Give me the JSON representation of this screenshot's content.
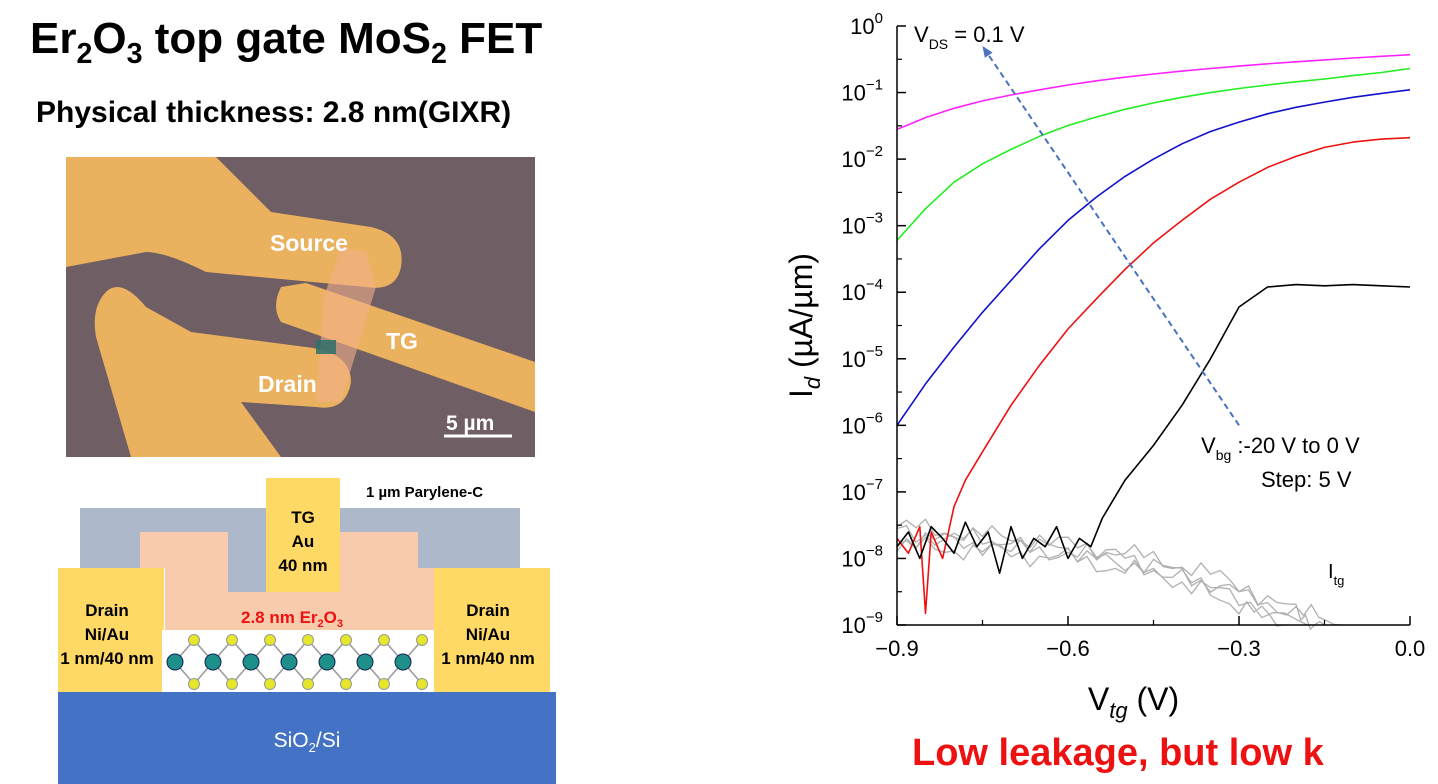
{
  "slide": {
    "title_parts": [
      "Er",
      "2",
      "O",
      "3",
      " top gate MoS",
      "2",
      " FET"
    ],
    "subtitle": "Physical thickness: 2.8 nm(GIXR)",
    "conclusion": "Low leakage, but low k"
  },
  "micrograph": {
    "labels": {
      "source": "Source",
      "tg": "TG",
      "drain": "Drain",
      "scale": "5 µm"
    },
    "colors": {
      "background": "#6f5e64",
      "metal": "#eab25e",
      "flake": "#f1b08a"
    }
  },
  "cross_section": {
    "parylene": "1 µm Parylene-C",
    "tg": [
      "TG",
      "Au",
      "40 nm"
    ],
    "oxide_parts": [
      "2.8 nm Er",
      "2",
      "O",
      "3"
    ],
    "drain_left": [
      "Drain",
      "Ni/Au",
      "1 nm/40 nm"
    ],
    "drain_right": [
      "Drain",
      "Ni/Au",
      "1 nm/40 nm"
    ],
    "substrate_parts": [
      "SiO",
      "2",
      "/Si"
    ],
    "colors": {
      "parylene": "#adb9ca",
      "oxide": "#f8cbad",
      "contact": "#ffd966",
      "substrate": "#4472c4",
      "atom_mo": "#1f8f8a",
      "atom_s": "#e6e62a"
    }
  },
  "chart_data": {
    "type": "line",
    "xlabel": "Vtg (V)",
    "ylabel": "Id (µA/µm)",
    "xlim": [
      -0.9,
      0.0
    ],
    "ylim": [
      1e-09,
      1
    ],
    "y_scale": "log",
    "x_ticks": [
      "−0.9",
      "−0.6",
      "−0.3",
      "0.0"
    ],
    "y_tick_exponents": [
      "0",
      "−1",
      "−2",
      "−3",
      "−4",
      "−5",
      "−6",
      "−7",
      "−8",
      "−9"
    ],
    "annotations": {
      "vds": "V_DS = 0.1 V",
      "vbg": "V_bg :-20 V to 0 V",
      "step": "Step: 5 V",
      "itg": "I_tg",
      "arrow_from": [
        -0.3,
        1e-06
      ],
      "arrow_to": [
        -0.75,
        0.5
      ]
    },
    "series": [
      {
        "color": "#ff22ff",
        "x": [
          -0.9,
          -0.85,
          -0.8,
          -0.75,
          -0.7,
          -0.65,
          -0.6,
          -0.55,
          -0.5,
          -0.45,
          -0.4,
          -0.35,
          -0.3,
          -0.25,
          -0.2,
          -0.15,
          -0.1,
          -0.05,
          0.0
        ],
        "y": [
          0.028,
          0.042,
          0.058,
          0.075,
          0.092,
          0.11,
          0.13,
          0.15,
          0.17,
          0.19,
          0.21,
          0.23,
          0.25,
          0.27,
          0.29,
          0.31,
          0.33,
          0.35,
          0.37
        ]
      },
      {
        "color": "#22ee22",
        "x": [
          -0.9,
          -0.85,
          -0.8,
          -0.75,
          -0.7,
          -0.65,
          -0.6,
          -0.55,
          -0.5,
          -0.45,
          -0.4,
          -0.35,
          -0.3,
          -0.25,
          -0.2,
          -0.15,
          -0.1,
          -0.05,
          0.0
        ],
        "y": [
          0.0006,
          0.0018,
          0.0045,
          0.0085,
          0.014,
          0.022,
          0.032,
          0.043,
          0.056,
          0.07,
          0.085,
          0.1,
          0.115,
          0.13,
          0.145,
          0.16,
          0.18,
          0.2,
          0.23
        ]
      },
      {
        "color": "#1111cc",
        "x": [
          -0.9,
          -0.85,
          -0.8,
          -0.75,
          -0.7,
          -0.65,
          -0.6,
          -0.55,
          -0.5,
          -0.45,
          -0.4,
          -0.35,
          -0.3,
          -0.25,
          -0.2,
          -0.15,
          -0.1,
          -0.05,
          0.0
        ],
        "y": [
          1e-06,
          4.2e-06,
          1.5e-05,
          5e-05,
          0.00015,
          0.00045,
          0.0012,
          0.0027,
          0.0055,
          0.01,
          0.017,
          0.026,
          0.036,
          0.048,
          0.06,
          0.072,
          0.085,
          0.097,
          0.11
        ]
      },
      {
        "color": "#ee1111",
        "x": [
          -0.9,
          -0.88,
          -0.86,
          -0.85,
          -0.84,
          -0.82,
          -0.8,
          -0.78,
          -0.75,
          -0.7,
          -0.65,
          -0.6,
          -0.55,
          -0.5,
          -0.45,
          -0.4,
          -0.35,
          -0.3,
          -0.25,
          -0.2,
          -0.15,
          -0.1,
          -0.05,
          0.0
        ],
        "y": [
          2e-08,
          1.2e-08,
          3e-08,
          1.5e-09,
          2.5e-08,
          1e-08,
          6e-08,
          1.5e-07,
          4e-07,
          2e-06,
          8e-06,
          2.8e-05,
          8e-05,
          0.00022,
          0.00055,
          0.0012,
          0.0025,
          0.0045,
          0.0075,
          0.011,
          0.015,
          0.018,
          0.02,
          0.021
        ]
      },
      {
        "color": "#000000",
        "x": [
          -0.9,
          -0.88,
          -0.86,
          -0.84,
          -0.82,
          -0.8,
          -0.78,
          -0.76,
          -0.74,
          -0.72,
          -0.7,
          -0.68,
          -0.66,
          -0.64,
          -0.62,
          -0.6,
          -0.58,
          -0.56,
          -0.54,
          -0.5,
          -0.45,
          -0.4,
          -0.35,
          -0.3,
          -0.25,
          -0.2,
          -0.15,
          -0.1,
          -0.05,
          0.0
        ],
        "y": [
          1.5e-08,
          2.5e-08,
          1e-08,
          3e-08,
          2e-08,
          1.2e-08,
          3.5e-08,
          1.5e-08,
          2.5e-08,
          6e-09,
          3e-08,
          1e-08,
          2e-08,
          1.5e-08,
          3e-08,
          1e-08,
          2e-08,
          1.5e-08,
          4e-08,
          1.5e-07,
          5e-07,
          2e-06,
          1e-05,
          6e-05,
          0.00012,
          0.00013,
          0.000125,
          0.00013,
          0.000125,
          0.00012
        ]
      }
    ],
    "leakage_series": [
      {
        "color": "#b0b0b0",
        "x": [
          -0.9,
          -0.8,
          -0.7,
          -0.6,
          -0.5,
          -0.4,
          -0.3,
          -0.2,
          -0.15
        ],
        "y": [
          3e-08,
          2.5e-08,
          2e-08,
          1.6e-08,
          1.2e-08,
          8e-09,
          4e-09,
          1.5e-09,
          1e-09
        ]
      },
      {
        "color": "#b0b0b0",
        "x": [
          -0.9,
          -0.8,
          -0.7,
          -0.6,
          -0.5,
          -0.4,
          -0.3,
          -0.2,
          -0.12
        ],
        "y": [
          2e-08,
          1.8e-08,
          1.5e-08,
          1.2e-08,
          9e-09,
          6e-09,
          3e-09,
          1.6e-09,
          1e-09
        ]
      },
      {
        "color": "#b0b0b0",
        "x": [
          -0.9,
          -0.8,
          -0.7,
          -0.6,
          -0.5,
          -0.4,
          -0.3,
          -0.22
        ],
        "y": [
          2.5e-08,
          2e-08,
          1.7e-08,
          1.4e-08,
          1e-08,
          5e-09,
          2e-09,
          1e-09
        ]
      },
      {
        "color": "#b0b0b0",
        "x": [
          -0.9,
          -0.8,
          -0.7,
          -0.6,
          -0.5,
          -0.4,
          -0.3,
          -0.18
        ],
        "y": [
          1.5e-08,
          1.4e-08,
          1.2e-08,
          1e-08,
          7e-09,
          4.5e-09,
          2.5e-09,
          1e-09
        ]
      }
    ]
  }
}
